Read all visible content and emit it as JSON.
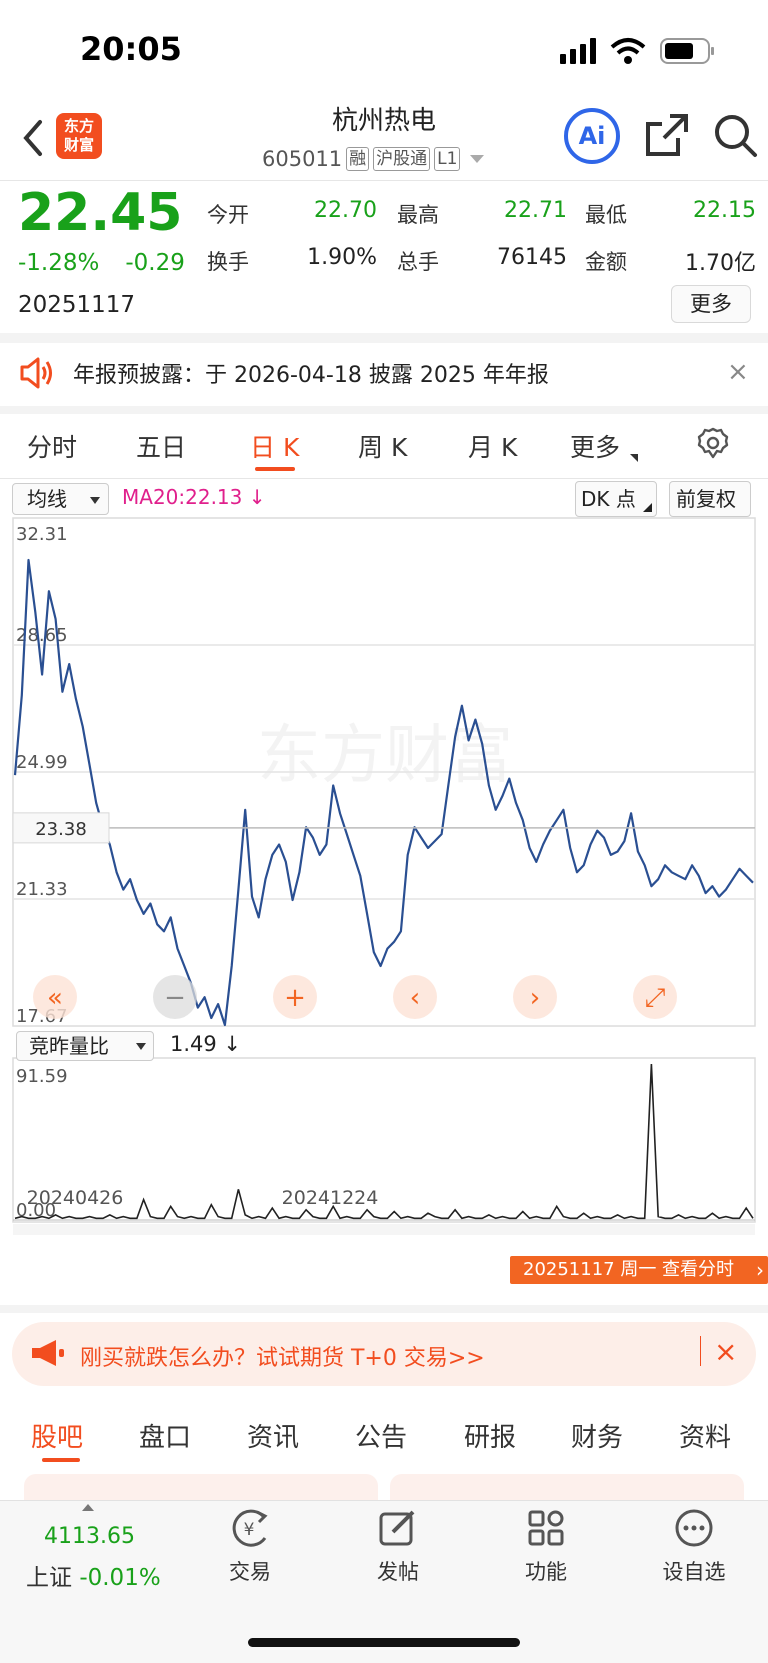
{
  "status_bar": {
    "time": "20:05"
  },
  "header": {
    "logo_text": "东方\n财富",
    "title": "杭州热电",
    "code": "605011",
    "tags": [
      "融",
      "沪股通",
      "L1"
    ],
    "ai_label": "Ai"
  },
  "quote": {
    "price": "22.45",
    "change_pct": "-1.28%",
    "change": "-0.29",
    "date": "20251117",
    "fields": [
      {
        "label": "今开",
        "value": "22.70",
        "color": "#19a11a"
      },
      {
        "label": "最高",
        "value": "22.71",
        "color": "#19a11a"
      },
      {
        "label": "最低",
        "value": "22.15",
        "color": "#19a11a"
      },
      {
        "label": "换手",
        "value": "1.90%",
        "color": "#222222"
      },
      {
        "label": "总手",
        "value": "76145",
        "color": "#222222"
      },
      {
        "label": "金额",
        "value": "1.70亿",
        "color": "#222222"
      }
    ],
    "more_label": "更多"
  },
  "notice": {
    "text": "年报预披露：于 2026-04-18 披露 2025 年年报",
    "close": "×"
  },
  "chart_tabs": [
    "分时",
    "五日",
    "日 K",
    "周 K",
    "月 K",
    "更多"
  ],
  "chart_tab_active": "日 K",
  "chart_toolbar": {
    "ma_select": "均线",
    "ma_value": "MA20:22.13 ↓",
    "dk_label": "DK 点",
    "adjust_label": "前复权"
  },
  "vol_toolbar": {
    "select": "竞昨量比",
    "value": "1.49 ↓"
  },
  "watermark": "东方财富",
  "chart_data": [
    {
      "type": "line",
      "ylim": [
        17.67,
        32.31
      ],
      "y_ticks": [
        "32.31",
        "28.65",
        "24.99",
        "21.33",
        "17.67"
      ],
      "crosshair_label": "23.38",
      "x_labels": [
        "20240426",
        "20241224"
      ],
      "values": [
        24.9,
        27.2,
        31.1,
        29.6,
        27.8,
        30.2,
        29.4,
        27.3,
        28.1,
        27.1,
        26.3,
        25.2,
        24.1,
        23.4,
        22.9,
        22.1,
        21.6,
        21.9,
        21.3,
        20.9,
        21.2,
        20.6,
        20.4,
        20.8,
        19.9,
        19.4,
        18.9,
        18.2,
        18.5,
        17.9,
        18.3,
        17.7,
        19.4,
        21.6,
        23.9,
        21.4,
        20.8,
        21.9,
        22.6,
        22.9,
        22.4,
        21.3,
        22.1,
        23.4,
        23.1,
        22.6,
        22.9,
        24.6,
        23.8,
        23.2,
        22.6,
        22.0,
        20.9,
        19.8,
        19.4,
        19.9,
        20.1,
        20.4,
        22.6,
        23.4,
        23.1,
        22.8,
        23.0,
        23.2,
        24.6,
        26.0,
        26.9,
        25.9,
        26.5,
        25.8,
        24.6,
        23.9,
        24.3,
        24.8,
        24.1,
        23.6,
        22.8,
        22.4,
        22.9,
        23.3,
        23.6,
        23.9,
        22.8,
        22.1,
        22.3,
        22.9,
        23.3,
        23.1,
        22.6,
        22.7,
        23.0,
        23.8,
        22.7,
        22.3,
        21.7,
        21.9,
        22.3,
        22.1,
        22.0,
        21.9,
        22.3,
        22.0,
        21.5,
        21.7,
        21.4,
        21.6,
        21.9,
        22.2,
        22.0,
        21.8
      ]
    },
    {
      "type": "bar",
      "ylim": [
        0,
        91.59
      ],
      "y_ticks": [
        "91.59",
        "0.00"
      ],
      "values": [
        1,
        2,
        1,
        1,
        2,
        1,
        3,
        1,
        2,
        1,
        1,
        2,
        1,
        1,
        3,
        1,
        2,
        1,
        1,
        12,
        2,
        1,
        1,
        8,
        2,
        1,
        2,
        1,
        1,
        9,
        2,
        1,
        1,
        18,
        3,
        1,
        2,
        1,
        7,
        1,
        2,
        1,
        1,
        6,
        2,
        1,
        1,
        8,
        1,
        2,
        1,
        1,
        6,
        2,
        1,
        1,
        5,
        1,
        2,
        1,
        1,
        4,
        2,
        1,
        1,
        6,
        1,
        2,
        1,
        1,
        3,
        1,
        2,
        1,
        1,
        5,
        1,
        2,
        1,
        1,
        8,
        2,
        1,
        1,
        4,
        1,
        2,
        1,
        1,
        3,
        1,
        2,
        1,
        1,
        91.59,
        2,
        1,
        1,
        3,
        1,
        2,
        1,
        1,
        4,
        1,
        2,
        1,
        1,
        7,
        1
      ]
    }
  ],
  "date_tooltip": "20251117 周一  查看分时",
  "chart_buttons": [
    "fast-back",
    "zoom-out",
    "zoom-in",
    "prev",
    "next",
    "fullscreen"
  ],
  "promo": {
    "text": "刚买就跌怎么办？试试期货 T+0 交易>>",
    "close": "×"
  },
  "footer_tabs": [
    "股吧",
    "盘口",
    "资讯",
    "公告",
    "研报",
    "财务",
    "资料"
  ],
  "footer_tab_active": "股吧",
  "tab_bar": {
    "index_value": "4113.65",
    "index_name": "上证",
    "index_change": "-0.01%",
    "items": [
      {
        "label": "交易",
        "icon": "yen-icon"
      },
      {
        "label": "发帖",
        "icon": "edit-icon"
      },
      {
        "label": "功能",
        "icon": "grid-icon"
      },
      {
        "label": "设自选",
        "icon": "more-icon"
      }
    ]
  }
}
